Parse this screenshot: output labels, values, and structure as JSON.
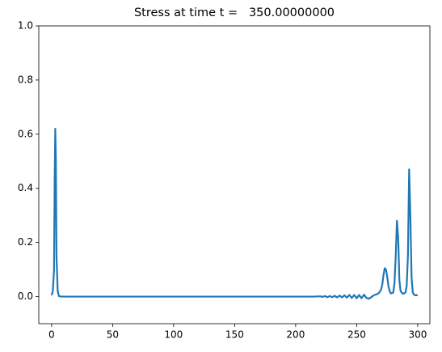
{
  "chart_data": {
    "type": "line",
    "title": "Stress at time t =   350.00000000",
    "x": [
      0,
      1,
      2,
      2.5,
      3,
      3.5,
      4,
      5,
      6,
      8,
      10,
      50,
      100,
      150,
      200,
      215,
      220,
      222,
      224,
      226,
      228,
      230,
      232,
      234,
      236,
      238,
      240,
      242,
      244,
      246,
      248,
      250,
      252,
      254,
      256,
      258,
      260,
      262,
      264,
      266,
      268,
      270,
      271,
      272,
      273,
      274,
      275,
      276,
      277,
      278,
      280,
      281,
      282,
      283,
      284,
      285,
      286,
      288,
      290,
      291,
      292,
      293,
      294,
      295,
      296,
      297,
      298,
      300
    ],
    "values": [
      0.005,
      0.02,
      0.1,
      0.42,
      0.62,
      0.5,
      0.15,
      0.02,
      0.002,
      0,
      0,
      0,
      0,
      0,
      0,
      0,
      0.001,
      -0.001,
      0.002,
      -0.002,
      0.002,
      -0.002,
      0.003,
      -0.003,
      0.004,
      -0.003,
      0.005,
      -0.004,
      0.006,
      -0.005,
      0.006,
      -0.006,
      0.006,
      -0.006,
      0.007,
      -0.005,
      -0.008,
      -0.002,
      0.005,
      0.008,
      0.012,
      0.025,
      0.045,
      0.08,
      0.105,
      0.1,
      0.075,
      0.04,
      0.02,
      0.012,
      0.015,
      0.05,
      0.15,
      0.28,
      0.22,
      0.06,
      0.02,
      0.01,
      0.015,
      0.04,
      0.15,
      0.47,
      0.3,
      0.07,
      0.015,
      0.007,
      0.005,
      0.005
    ],
    "color": "#1f77b4",
    "xlim": [
      -10.5,
      310
    ],
    "xticks": [
      0,
      50,
      100,
      150,
      200,
      250,
      300
    ],
    "ylim": [
      -0.1,
      1.0
    ],
    "yticks": [
      {
        "value": 0,
        "label": "0.0"
      },
      0.2,
      0.4,
      0.6,
      0.8,
      {
        "value": 1,
        "label": "1.0"
      }
    ],
    "grid": false
  }
}
